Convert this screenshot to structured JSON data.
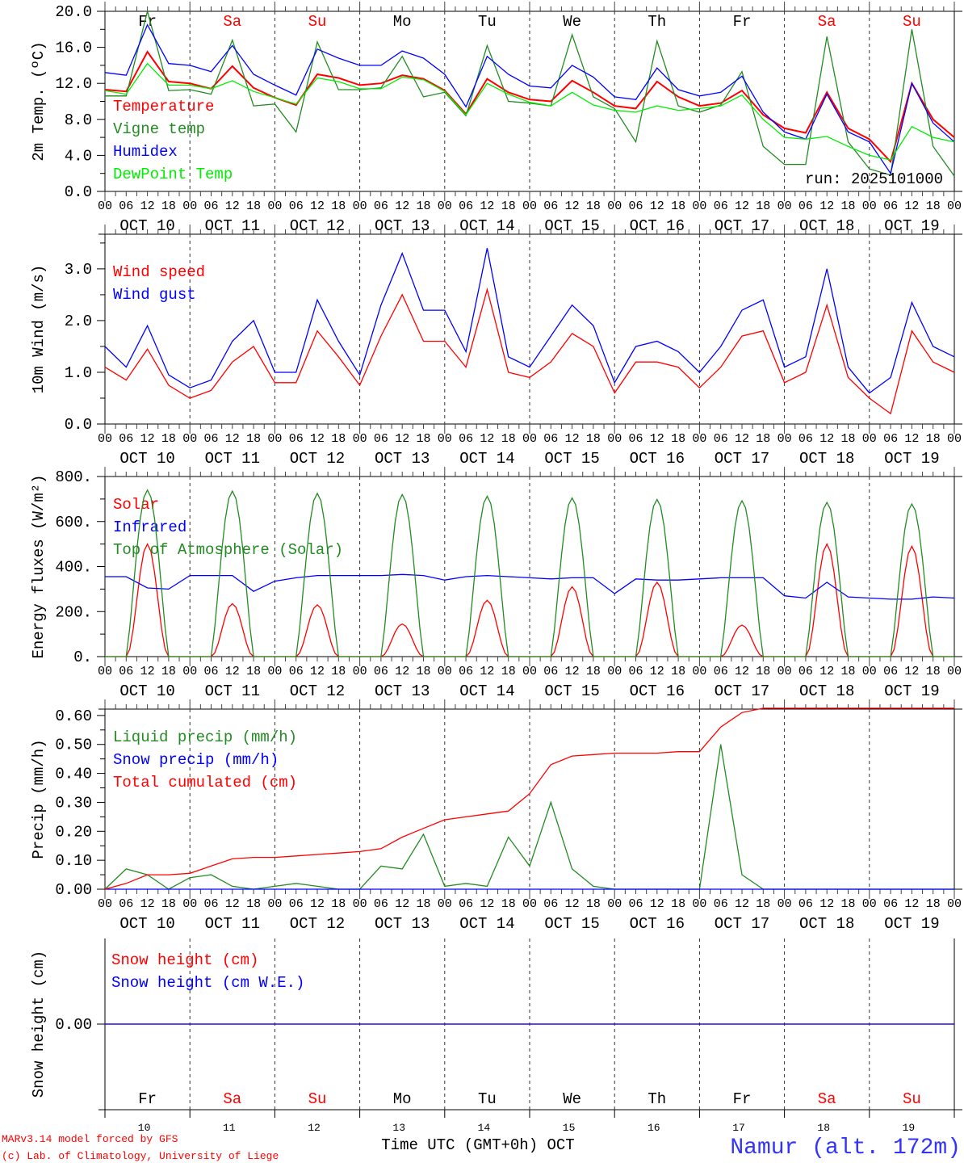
{
  "colors": {
    "red": "#ff0000",
    "green": "#228b22",
    "blue": "#0000ff",
    "lime": "#00ee00",
    "black": "#000000"
  },
  "days": [
    "Fr",
    "Sa",
    "Su",
    "Mo",
    "Tu",
    "We",
    "Th",
    "Fr",
    "Sa",
    "Su"
  ],
  "weekend": [
    false,
    true,
    true,
    false,
    false,
    false,
    false,
    false,
    true,
    true
  ],
  "dates": [
    "OCT 10",
    "OCT 11",
    "OCT 12",
    "OCT 13",
    "OCT 14",
    "OCT 15",
    "OCT 16",
    "OCT 17",
    "OCT 18",
    "OCT 19"
  ],
  "day_numbers": [
    "10",
    "11",
    "12",
    "13",
    "14",
    "15",
    "16",
    "17",
    "18",
    "19"
  ],
  "hour_labels": [
    "00",
    "06",
    "12",
    "18"
  ],
  "run": "run: 2025101000",
  "footer": {
    "model": "MARv3.14 model forced by GFS",
    "credit": "(c) Lab. of Climatology, University of Liege",
    "time_axis": "Time UTC (GMT+0h) OCT",
    "station": "Namur (alt. 172m)"
  },
  "chart_data": [
    {
      "type": "line",
      "ylabel": "2m Temp. (ºC)",
      "ylim": [
        0,
        20
      ],
      "yticks": [
        "0.0",
        "4.0",
        "8.0",
        "12.0",
        "16.0",
        "20.0"
      ],
      "x_hours_step": 6,
      "series": [
        {
          "name": "Temperature",
          "color": "#ff0000",
          "values": [
            11.3,
            11.1,
            15.5,
            12.2,
            12.0,
            11.4,
            13.9,
            11.5,
            10.4,
            9.6,
            13.0,
            12.6,
            11.8,
            12.0,
            12.9,
            12.5,
            11.2,
            8.6,
            12.5,
            11.0,
            10.2,
            10.0,
            12.3,
            11.0,
            9.5,
            9.2,
            12.2,
            10.5,
            9.5,
            9.8,
            11.2,
            8.5,
            7.0,
            6.5,
            11.0,
            7.0,
            5.8,
            3.3,
            12.0,
            8.0,
            6.0
          ]
        },
        {
          "name": "Vigne temp",
          "color": "#228b22",
          "values": [
            10.6,
            10.6,
            20,
            11.2,
            11.3,
            10.8,
            16.8,
            9.5,
            9.7,
            6.6,
            16.6,
            11.3,
            11.3,
            11.5,
            15.0,
            10.5,
            11.0,
            8.4,
            16.2,
            10.0,
            9.8,
            9.5,
            17.4,
            10.5,
            9.2,
            5.5,
            16.7,
            9.5,
            8.8,
            9.6,
            13.3,
            5.0,
            3.0,
            3.0,
            17.2,
            5.5,
            2.5,
            1.8,
            18.0,
            5.0,
            1.7
          ]
        },
        {
          "name": "Humidex",
          "color": "#0000ff",
          "values": [
            13.2,
            12.9,
            18.5,
            14.2,
            14.0,
            13.3,
            16.2,
            13.0,
            11.8,
            10.7,
            15.8,
            14.8,
            14.0,
            14.0,
            15.6,
            14.8,
            13.0,
            9.4,
            15.0,
            13.0,
            11.7,
            11.5,
            14.0,
            12.7,
            10.5,
            10.2,
            13.7,
            11.3,
            10.6,
            11.0,
            12.8,
            8.8,
            6.6,
            5.8,
            10.8,
            6.6,
            5.5,
            2.0,
            12.0,
            7.6,
            5.5
          ]
        },
        {
          "name": "DewPoint Temp",
          "color": "#00ee00",
          "values": [
            11.2,
            10.8,
            14.2,
            11.8,
            11.8,
            11.4,
            12.3,
            11.1,
            10.4,
            9.7,
            12.6,
            12.2,
            11.4,
            11.4,
            12.7,
            12.4,
            11.1,
            8.5,
            12.0,
            10.8,
            9.9,
            9.5,
            11.0,
            9.6,
            9.0,
            8.8,
            9.5,
            9.0,
            9.2,
            9.5,
            10.7,
            8.0,
            6.0,
            5.8,
            6.1,
            5.0,
            4.0,
            3.5,
            7.2,
            6.0,
            5.5
          ]
        }
      ]
    },
    {
      "type": "line",
      "ylabel": "10m Wind (m/s)",
      "ylim": [
        0,
        3.67
      ],
      "yticks": [
        "0.0",
        "1.0",
        "2.0",
        "3.0"
      ],
      "x_hours_step": 6,
      "series": [
        {
          "name": "Wind speed",
          "color": "#ff0000",
          "values": [
            1.1,
            0.85,
            1.45,
            0.75,
            0.5,
            0.65,
            1.2,
            1.5,
            0.8,
            0.8,
            1.8,
            1.3,
            0.75,
            1.7,
            2.5,
            1.6,
            1.6,
            1.1,
            2.6,
            1.0,
            0.9,
            1.2,
            1.75,
            1.5,
            0.6,
            1.2,
            1.2,
            1.1,
            0.7,
            1.1,
            1.7,
            1.8,
            0.8,
            1.0,
            2.3,
            0.9,
            0.5,
            0.2,
            1.8,
            1.2,
            1.0
          ]
        },
        {
          "name": "Wind gust",
          "color": "#0000ff",
          "values": [
            1.5,
            1.1,
            1.9,
            0.95,
            0.7,
            0.85,
            1.6,
            2.0,
            1.0,
            1.0,
            2.4,
            1.6,
            0.95,
            2.3,
            3.3,
            2.2,
            2.2,
            1.4,
            3.4,
            1.3,
            1.1,
            1.7,
            2.3,
            1.9,
            0.8,
            1.5,
            1.6,
            1.4,
            1.0,
            1.5,
            2.2,
            2.4,
            1.1,
            1.3,
            3.0,
            1.1,
            0.6,
            0.9,
            2.35,
            1.5,
            1.3
          ]
        }
      ]
    },
    {
      "type": "line",
      "ylabel": "Energy fluxes (W/m²)",
      "ylim": [
        0,
        800
      ],
      "yticks": [
        "0.",
        "200.",
        "400.",
        "600.",
        "800."
      ],
      "series": [
        {
          "name": "Solar",
          "color": "#ff0000",
          "daily_peaks": [
            500,
            235,
            230,
            145,
            250,
            310,
            330,
            140,
            500,
            490
          ]
        },
        {
          "name": "Infrared",
          "color": "#0000ff",
          "x_hours_step": 6,
          "values": [
            355,
            355,
            305,
            300,
            360,
            360,
            360,
            290,
            335,
            350,
            360,
            360,
            360,
            360,
            365,
            360,
            340,
            355,
            360,
            355,
            350,
            345,
            350,
            350,
            280,
            345,
            340,
            340,
            345,
            350,
            350,
            350,
            270,
            260,
            330,
            265,
            260,
            255,
            255,
            265,
            260
          ]
        },
        {
          "name": "Top of Atmosphere (Solar)",
          "color": "#228b22",
          "daily_peaks": [
            740,
            735,
            725,
            720,
            712,
            705,
            698,
            692,
            685,
            678
          ]
        }
      ]
    },
    {
      "type": "line",
      "ylabel": "Precip (mm/h)",
      "ylim": [
        0,
        0.622
      ],
      "yticks": [
        "0.00",
        "0.10",
        "0.20",
        "0.30",
        "0.40",
        "0.50",
        "0.60"
      ],
      "x_hours_step": 6,
      "series": [
        {
          "name": "Liquid precip (mm/h)",
          "color": "#228b22",
          "values": [
            0,
            0.07,
            0.05,
            0,
            0.04,
            0.05,
            0.01,
            0,
            0.01,
            0.02,
            0.01,
            0,
            0,
            0.08,
            0.07,
            0.19,
            0.01,
            0.02,
            0.01,
            0.18,
            0.08,
            0.3,
            0.07,
            0.01,
            0,
            0,
            0,
            0,
            0,
            0.5,
            0.05,
            0,
            0,
            0,
            0,
            0,
            0,
            0,
            0,
            0,
            0
          ]
        },
        {
          "name": "Snow precip (mm/h)",
          "color": "#0000ff",
          "values": [
            0,
            0,
            0,
            0,
            0,
            0,
            0,
            0,
            0,
            0,
            0,
            0,
            0,
            0,
            0,
            0,
            0,
            0,
            0,
            0,
            0,
            0,
            0,
            0,
            0,
            0,
            0,
            0,
            0,
            0,
            0,
            0,
            0,
            0,
            0,
            0,
            0,
            0,
            0,
            0,
            0
          ]
        },
        {
          "name": "Total cumulated (cm)",
          "color": "#ff0000",
          "values": [
            0,
            0.02,
            0.05,
            0.05,
            0.055,
            0.08,
            0.105,
            0.11,
            0.11,
            0.115,
            0.12,
            0.125,
            0.13,
            0.14,
            0.18,
            0.21,
            0.24,
            0.25,
            0.26,
            0.27,
            0.33,
            0.43,
            0.46,
            0.465,
            0.47,
            0.47,
            0.47,
            0.475,
            0.475,
            0.56,
            0.61,
            0.625,
            0.625,
            0.625,
            0.625,
            0.625,
            0.625,
            0.625,
            0.625,
            0.625,
            0.625
          ]
        }
      ]
    },
    {
      "type": "line",
      "ylabel": "Snow height (cm)",
      "ylim": [
        -1,
        1
      ],
      "yticks": [
        "0.00"
      ],
      "ytick_values": [
        0
      ],
      "x_hours_step": 6,
      "series": [
        {
          "name": "Snow height (cm)",
          "color": "#ff0000",
          "values": [
            0,
            0,
            0,
            0,
            0,
            0,
            0,
            0,
            0,
            0,
            0,
            0,
            0,
            0,
            0,
            0,
            0,
            0,
            0,
            0,
            0,
            0,
            0,
            0,
            0,
            0,
            0,
            0,
            0,
            0,
            0,
            0,
            0,
            0,
            0,
            0,
            0,
            0,
            0,
            0,
            0
          ]
        },
        {
          "name": "Snow height (cm W.E.)",
          "color": "#0000ff",
          "values": [
            0,
            0,
            0,
            0,
            0,
            0,
            0,
            0,
            0,
            0,
            0,
            0,
            0,
            0,
            0,
            0,
            0,
            0,
            0,
            0,
            0,
            0,
            0,
            0,
            0,
            0,
            0,
            0,
            0,
            0,
            0,
            0,
            0,
            0,
            0,
            0,
            0,
            0,
            0,
            0,
            0
          ]
        }
      ]
    }
  ]
}
